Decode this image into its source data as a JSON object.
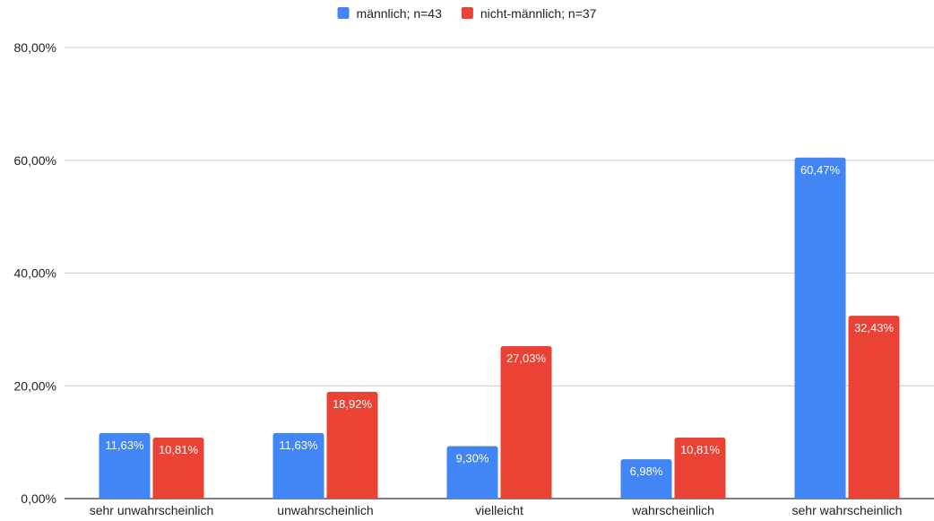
{
  "chart_data": {
    "type": "bar",
    "title": "",
    "xlabel": "",
    "ylabel": "",
    "categories": [
      "sehr unwahrscheinlich",
      "unwahrscheinlich",
      "vielleicht",
      "wahrscheinlich",
      "sehr wahrscheinlich"
    ],
    "series": [
      {
        "name": "männlich; n=43",
        "color": "#4285f4",
        "values": [
          11.63,
          11.63,
          9.3,
          6.98,
          60.47
        ],
        "labels": [
          "11,63%",
          "11,63%",
          "9,30%",
          "6,98%",
          "60,47%"
        ]
      },
      {
        "name": "nicht-männlich; n=37",
        "color": "#ea4335",
        "values": [
          10.81,
          18.92,
          27.03,
          10.81,
          32.43
        ],
        "labels": [
          "10,81%",
          "18,92%",
          "27,03%",
          "10,81%",
          "32,43%"
        ]
      }
    ],
    "ylim": [
      0,
      80
    ],
    "yticks": [
      0,
      20,
      40,
      60,
      80
    ],
    "ytick_labels": [
      "0,00%",
      "20,00%",
      "40,00%",
      "60,00%",
      "80,00%"
    ],
    "grid": true,
    "legend_position": "top-center"
  }
}
